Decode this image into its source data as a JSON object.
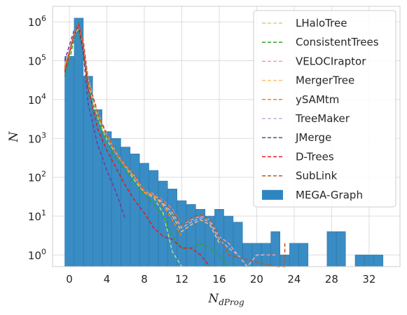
{
  "chart_data": {
    "type": "bar",
    "xlabel_main": "N",
    "xlabel_sub": "dProg",
    "ylabel": "N",
    "xlim": [
      -1.8,
      35.3
    ],
    "ylim_log10": [
      -0.3,
      6.4
    ],
    "scale_y": "log",
    "grid": true,
    "legend_placement": "top-right",
    "x_ticks": [
      {
        "value": 0,
        "label": "0"
      },
      {
        "value": 4,
        "label": "4"
      },
      {
        "value": 8,
        "label": "8"
      },
      {
        "value": 12,
        "label": "12"
      },
      {
        "value": 16,
        "label": "16"
      },
      {
        "value": 20,
        "label": "20"
      },
      {
        "value": 24,
        "label": "24"
      },
      {
        "value": 28,
        "label": "28"
      },
      {
        "value": 32,
        "label": "32"
      }
    ],
    "y_ticks": [
      {
        "exp": 0,
        "base": "10",
        "sup": "0"
      },
      {
        "exp": 1,
        "base": "10",
        "sup": "1"
      },
      {
        "exp": 2,
        "base": "10",
        "sup": "2"
      },
      {
        "exp": 3,
        "base": "10",
        "sup": "3"
      },
      {
        "exp": 4,
        "base": "10",
        "sup": "4"
      },
      {
        "exp": 5,
        "base": "10",
        "sup": "5"
      },
      {
        "exp": 6,
        "base": "10",
        "sup": "6"
      }
    ],
    "histogram": {
      "name": "MEGA-Graph",
      "color": "#2e86c1",
      "bin_width": 0.98,
      "bins": [
        {
          "x": 0,
          "value": 130000
        },
        {
          "x": 1,
          "value": 1250000
        },
        {
          "x": 2,
          "value": 40000
        },
        {
          "x": 3,
          "value": 5500
        },
        {
          "x": 4,
          "value": 1500
        },
        {
          "x": 5,
          "value": 1000
        },
        {
          "x": 6,
          "value": 600
        },
        {
          "x": 7,
          "value": 400
        },
        {
          "x": 8,
          "value": 230
        },
        {
          "x": 9,
          "value": 150
        },
        {
          "x": 10,
          "value": 80
        },
        {
          "x": 11,
          "value": 50
        },
        {
          "x": 12,
          "value": 25
        },
        {
          "x": 13,
          "value": 20
        },
        {
          "x": 14,
          "value": 15
        },
        {
          "x": 15,
          "value": 10
        },
        {
          "x": 16,
          "value": 15
        },
        {
          "x": 17,
          "value": 10
        },
        {
          "x": 18,
          "value": 7
        },
        {
          "x": 19,
          "value": 2
        },
        {
          "x": 20,
          "value": 2
        },
        {
          "x": 21,
          "value": 2
        },
        {
          "x": 22,
          "value": 4
        },
        {
          "x": 23,
          "value": 1
        },
        {
          "x": 24,
          "value": 2
        },
        {
          "x": 25,
          "value": 2
        },
        {
          "x": 28,
          "value": 4
        },
        {
          "x": 29,
          "value": 4
        },
        {
          "x": 31,
          "value": 1
        },
        {
          "x": 32,
          "value": 1
        },
        {
          "x": 33,
          "value": 1
        }
      ]
    },
    "series": [
      {
        "name": "LHaloTree",
        "color": "#b2df8a",
        "x": [
          -0.5,
          0,
          0.5,
          1,
          1.5,
          2,
          3,
          4,
          5,
          6,
          7,
          8,
          9,
          10,
          11,
          12
        ],
        "values": [
          60000,
          150000,
          450000,
          700000,
          200000,
          25000,
          3500,
          900,
          400,
          180,
          80,
          40,
          30,
          12,
          1.2,
          0.5
        ]
      },
      {
        "name": "ConsistentTrees",
        "color": "#33a02c",
        "x": [
          -0.5,
          0,
          0.5,
          1,
          1.5,
          2,
          3,
          4,
          5,
          6,
          7,
          8,
          9,
          10,
          11,
          12,
          13,
          14,
          15,
          16,
          17
        ],
        "values": [
          40000,
          100000,
          350000,
          600000,
          150000,
          20000,
          3000,
          800,
          300,
          150,
          70,
          35,
          20,
          10,
          3,
          1.5,
          1.5,
          2,
          1.5,
          1,
          0.5
        ]
      },
      {
        "name": "VELOCIraptor",
        "color": "#fb9a99",
        "x": [
          -0.5,
          0,
          0.5,
          1,
          1.5,
          2,
          3,
          4,
          5,
          6,
          7,
          8,
          9,
          10,
          11,
          12,
          13,
          14,
          15,
          16,
          17,
          18,
          19,
          20,
          21,
          22
        ],
        "values": [
          80000,
          200000,
          500000,
          850000,
          300000,
          35000,
          5000,
          1300,
          450,
          200,
          110,
          45,
          38,
          25,
          15,
          6,
          8,
          10,
          8,
          3,
          2,
          1,
          0.5,
          1,
          1,
          1
        ]
      },
      {
        "name": "MergerTree",
        "color": "#fdbf6f",
        "x": [
          -0.5,
          0,
          0.5,
          1,
          1.5,
          2,
          3,
          4,
          5,
          6,
          7,
          8,
          9,
          10,
          11,
          12,
          13,
          14,
          15,
          16
        ],
        "values": [
          70000,
          180000,
          480000,
          800000,
          280000,
          32000,
          4500,
          1200,
          420,
          190,
          100,
          42,
          34,
          20,
          10,
          4,
          6,
          8,
          6,
          2
        ]
      },
      {
        "name": "ySAMtm",
        "color": "#ff7f00",
        "x": [
          -0.5,
          0,
          0.5,
          1,
          1.5,
          2,
          3,
          4,
          5,
          6,
          7,
          8,
          9,
          10,
          11,
          12
        ],
        "values": [
          70000,
          180000,
          470000,
          780000,
          270000,
          30000,
          4300,
          1150,
          400,
          180,
          95,
          40,
          32,
          18,
          8,
          3
        ]
      },
      {
        "name": "TreeMaker",
        "color": "#cab2d6",
        "x": [
          -0.5,
          0,
          0.5,
          1,
          1.5,
          2,
          3,
          4,
          5,
          6,
          7,
          8,
          9,
          10,
          11,
          12,
          13,
          14,
          15,
          16,
          17,
          18,
          19,
          20,
          21
        ],
        "values": [
          80000,
          200000,
          500000,
          820000,
          290000,
          34000,
          4800,
          1250,
          430,
          195,
          105,
          43,
          36,
          22,
          12,
          5,
          7,
          9,
          7,
          2.5,
          1.5,
          1,
          0.5,
          1,
          1
        ]
      },
      {
        "name": "JMerge",
        "color": "#6a3d9a",
        "x": [
          -0.5,
          0,
          0.5,
          1,
          1.5,
          2,
          3,
          4,
          5,
          6
        ],
        "values": [
          100000,
          250000,
          600000,
          700000,
          150000,
          8000,
          700,
          150,
          40,
          8
        ]
      },
      {
        "name": "D-Trees",
        "color": "#e31a1c",
        "x": [
          -0.5,
          0,
          0.5,
          1,
          1.5,
          2,
          3,
          4,
          5,
          6,
          7,
          8,
          9,
          10,
          11,
          12,
          13,
          14,
          15
        ],
        "values": [
          50000,
          150000,
          450000,
          900000,
          200000,
          20000,
          1800,
          500,
          170,
          60,
          25,
          12,
          5,
          3,
          2.5,
          1.5,
          1.5,
          1,
          0.5
        ]
      },
      {
        "name": "SubLink",
        "color": "#b15928",
        "x": [
          -0.5,
          0,
          0.5,
          1,
          1.5,
          2,
          3,
          4,
          5,
          6,
          7,
          8,
          9,
          10,
          11,
          12,
          13,
          14,
          15,
          16,
          17,
          22,
          23,
          23
        ],
        "values": [
          60000,
          160000,
          460000,
          880000,
          310000,
          30000,
          4700,
          1250,
          440,
          200,
          110,
          44,
          37,
          24,
          14,
          6,
          9,
          11,
          8,
          3,
          1,
          0.5,
          0.5,
          2
        ]
      }
    ]
  }
}
